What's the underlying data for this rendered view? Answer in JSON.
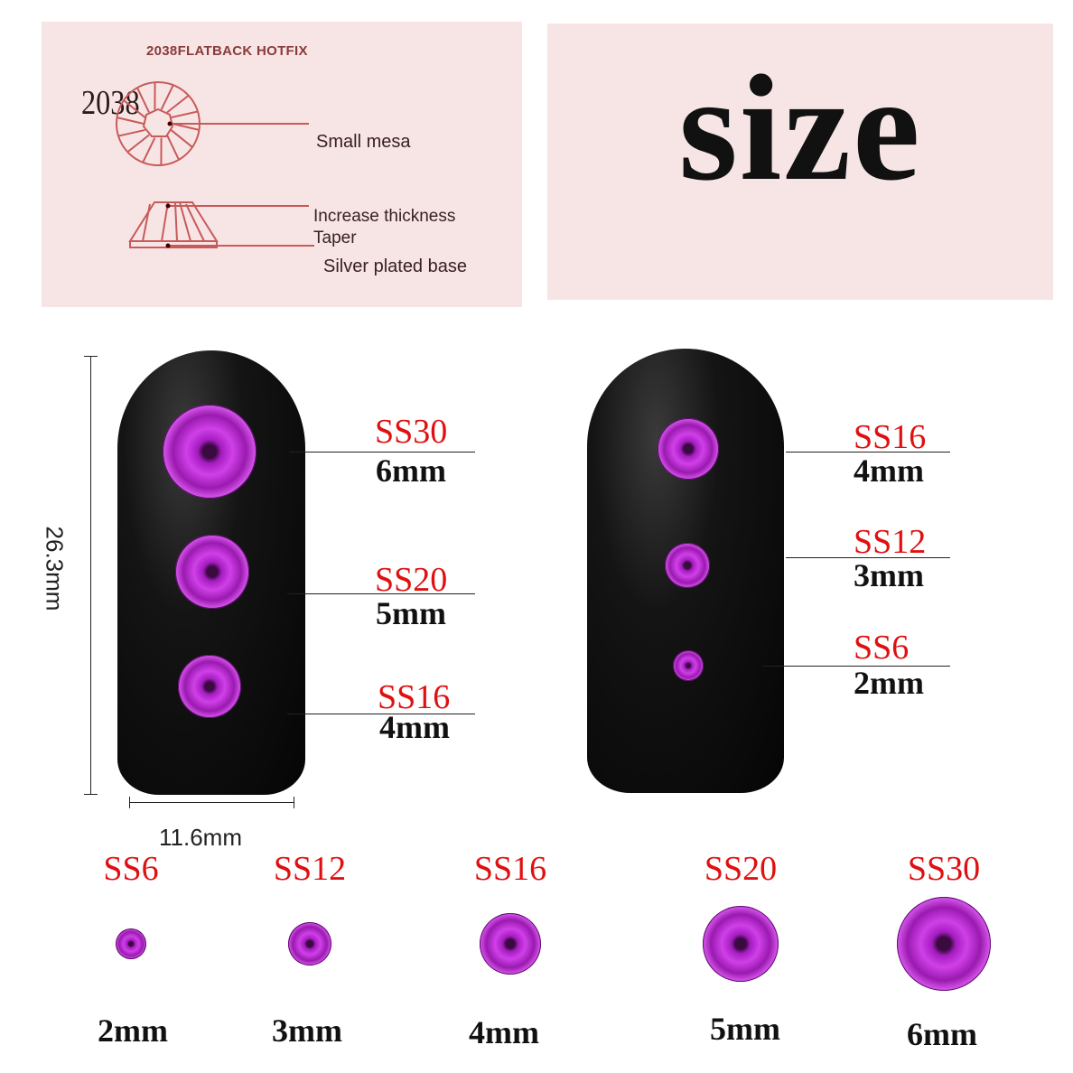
{
  "spec_panel": {
    "header": "2038FLATBACK HOTFIX",
    "model": "2038",
    "labels": {
      "small_mesa": "Small mesa",
      "increase_thickness": "Increase thickness",
      "taper": "Taper",
      "silver_base": "Silver plated base"
    },
    "line_color": "#c85a5a"
  },
  "title_panel": {
    "title": "size"
  },
  "dimensions": {
    "height": "26.3mm",
    "width": "11.6mm"
  },
  "left_nail": [
    {
      "size": "SS30",
      "mm": "6mm"
    },
    {
      "size": "SS20",
      "mm": "5mm"
    },
    {
      "size": "SS16",
      "mm": "4mm"
    }
  ],
  "right_nail": [
    {
      "size": "SS16",
      "mm": "4mm"
    },
    {
      "size": "SS12",
      "mm": "3mm"
    },
    {
      "size": "SS6",
      "mm": "2mm"
    }
  ],
  "bottom_row": [
    {
      "size": "SS6",
      "mm": "2mm"
    },
    {
      "size": "SS12",
      "mm": "3mm"
    },
    {
      "size": "SS16",
      "mm": "4mm"
    },
    {
      "size": "SS20",
      "mm": "5mm"
    },
    {
      "size": "SS30",
      "mm": "6mm"
    }
  ],
  "colors": {
    "size_label": "#e01010",
    "stone": "#c030d8",
    "panel_bg": "#f7e5e5"
  }
}
